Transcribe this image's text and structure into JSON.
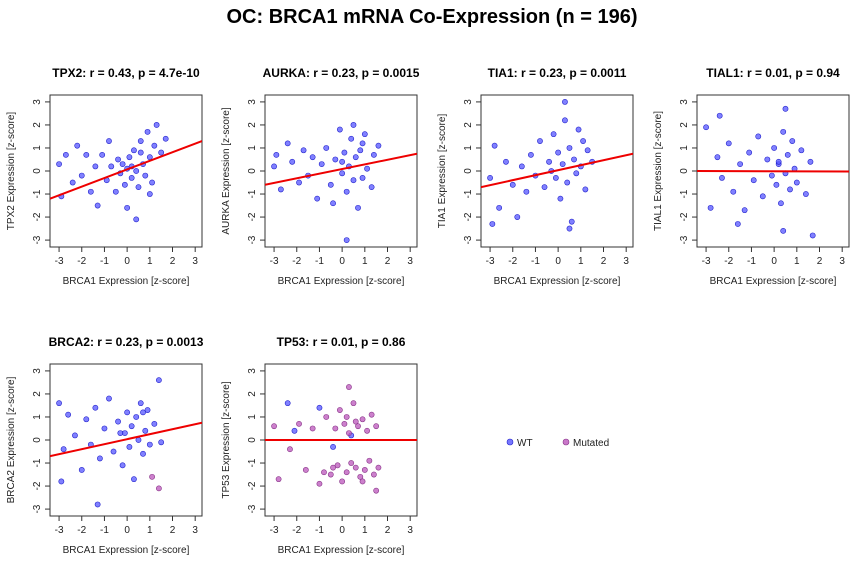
{
  "title": "OC: BRCA1 mRNA Co-Expression (n = 196)",
  "colors": {
    "wt": "#5555ff",
    "wt_stroke": "#2222cc",
    "mutated": "#bb55bb",
    "mutated_stroke": "#883388",
    "regression": "#ee0000"
  },
  "legend": {
    "items": [
      {
        "label": "WT",
        "color": "#5555ff"
      },
      {
        "label": "Mutated",
        "color": "#bb55bb"
      }
    ]
  },
  "chart_data": [
    {
      "type": "scatter",
      "title": "TPX2: r = 0.43, p = 4.7e-10",
      "xlabel": "BRCA1 Expression [z-score]",
      "ylabel": "TPX2 Expression [z-score]",
      "xlim": [
        -3.4,
        3.3
      ],
      "ylim": [
        -3.3,
        3.3
      ],
      "xticks": [
        -3,
        -2,
        -1,
        0,
        1,
        2,
        3
      ],
      "yticks": [
        -3,
        -2,
        -1,
        0,
        1,
        2,
        3
      ],
      "regression": {
        "x": [
          -3.4,
          3.3
        ],
        "y": [
          -1.2,
          1.3
        ]
      },
      "series": [
        {
          "name": "WT",
          "points": [
            [
              -3.0,
              0.3
            ],
            [
              -2.7,
              0.7
            ],
            [
              -2.4,
              -0.5
            ],
            [
              -2.2,
              1.1
            ],
            [
              -2.0,
              -0.2
            ],
            [
              -1.8,
              0.7
            ],
            [
              -1.6,
              -0.9
            ],
            [
              -1.4,
              0.2
            ],
            [
              -1.3,
              -1.5
            ],
            [
              -1.1,
              0.7
            ],
            [
              -0.9,
              -0.4
            ],
            [
              -0.7,
              0.2
            ],
            [
              -0.5,
              -0.9
            ],
            [
              -0.4,
              0.5
            ],
            [
              -0.3,
              -0.1
            ],
            [
              -0.2,
              0.3
            ],
            [
              -0.1,
              -0.6
            ],
            [
              0.0,
              0.1
            ],
            [
              0.1,
              0.6
            ],
            [
              0.2,
              -0.3
            ],
            [
              0.3,
              0.9
            ],
            [
              0.4,
              0.0
            ],
            [
              0.5,
              -0.7
            ],
            [
              0.6,
              1.3
            ],
            [
              0.7,
              0.3
            ],
            [
              0.8,
              -0.2
            ],
            [
              0.9,
              1.7
            ],
            [
              1.0,
              0.6
            ],
            [
              1.1,
              -0.5
            ],
            [
              1.2,
              1.1
            ],
            [
              1.3,
              2.0
            ],
            [
              1.5,
              0.8
            ],
            [
              1.7,
              1.4
            ],
            [
              -0.8,
              1.3
            ],
            [
              0.0,
              -1.6
            ],
            [
              0.4,
              -2.1
            ],
            [
              1.0,
              -1.0
            ],
            [
              -2.9,
              -1.1
            ],
            [
              0.6,
              0.8
            ],
            [
              0.2,
              0.2
            ]
          ]
        },
        {
          "name": "Mutated",
          "points": []
        }
      ]
    },
    {
      "type": "scatter",
      "title": "AURKA: r = 0.23, p = 0.0015",
      "xlabel": "BRCA1 Expression [z-score]",
      "ylabel": "AURKA Expression [z-score]",
      "xlim": [
        -3.4,
        3.3
      ],
      "ylim": [
        -3.3,
        3.3
      ],
      "xticks": [
        -3,
        -2,
        -1,
        0,
        1,
        2,
        3
      ],
      "yticks": [
        -3,
        -2,
        -1,
        0,
        1,
        2,
        3
      ],
      "regression": {
        "x": [
          -3.4,
          3.3
        ],
        "y": [
          -0.6,
          0.75
        ]
      },
      "series": [
        {
          "name": "WT",
          "points": [
            [
              -3.0,
              0.2
            ],
            [
              -2.7,
              -0.8
            ],
            [
              -2.4,
              1.2
            ],
            [
              -2.2,
              0.4
            ],
            [
              -1.9,
              -0.5
            ],
            [
              -1.7,
              0.9
            ],
            [
              -1.5,
              -0.2
            ],
            [
              -1.3,
              0.6
            ],
            [
              -1.1,
              -1.2
            ],
            [
              -0.9,
              0.3
            ],
            [
              -0.7,
              1.0
            ],
            [
              -0.5,
              -0.6
            ],
            [
              -0.3,
              0.5
            ],
            [
              -0.1,
              1.8
            ],
            [
              0.0,
              -0.1
            ],
            [
              0.1,
              0.8
            ],
            [
              0.2,
              -0.9
            ],
            [
              0.3,
              0.2
            ],
            [
              0.4,
              1.4
            ],
            [
              0.5,
              -0.4
            ],
            [
              0.6,
              0.6
            ],
            [
              0.7,
              -1.6
            ],
            [
              0.8,
              0.9
            ],
            [
              0.9,
              -0.3
            ],
            [
              1.0,
              1.6
            ],
            [
              1.1,
              0.1
            ],
            [
              1.3,
              -0.7
            ],
            [
              1.4,
              0.7
            ],
            [
              1.6,
              1.1
            ],
            [
              0.2,
              -3.0
            ],
            [
              -0.4,
              -1.4
            ],
            [
              0.5,
              2.0
            ],
            [
              -2.9,
              0.7
            ],
            [
              0.9,
              1.2
            ],
            [
              0.0,
              0.4
            ]
          ]
        },
        {
          "name": "Mutated",
          "points": []
        }
      ]
    },
    {
      "type": "scatter",
      "title": "TIA1: r = 0.23, p = 0.0011",
      "xlabel": "BRCA1 Expression [z-score]",
      "ylabel": "TIA1 Expression [z-score]",
      "xlim": [
        -3.4,
        3.3
      ],
      "ylim": [
        -3.3,
        3.3
      ],
      "xticks": [
        -3,
        -2,
        -1,
        0,
        1,
        2,
        3
      ],
      "yticks": [
        -3,
        -2,
        -1,
        0,
        1,
        2,
        3
      ],
      "regression": {
        "x": [
          -3.4,
          3.3
        ],
        "y": [
          -0.7,
          0.75
        ]
      },
      "series": [
        {
          "name": "WT",
          "points": [
            [
              -3.0,
              -0.3
            ],
            [
              -2.8,
              1.1
            ],
            [
              -2.6,
              -1.6
            ],
            [
              -2.3,
              0.4
            ],
            [
              -2.0,
              -0.6
            ],
            [
              -1.8,
              -2.0
            ],
            [
              -1.6,
              0.2
            ],
            [
              -1.4,
              -0.9
            ],
            [
              -1.2,
              0.7
            ],
            [
              -1.0,
              -0.2
            ],
            [
              -0.8,
              1.3
            ],
            [
              -0.6,
              -0.7
            ],
            [
              -0.4,
              0.4
            ],
            [
              -0.2,
              1.6
            ],
            [
              -0.1,
              -0.3
            ],
            [
              0.0,
              0.8
            ],
            [
              0.1,
              -1.2
            ],
            [
              0.2,
              0.3
            ],
            [
              0.3,
              2.2
            ],
            [
              0.4,
              -0.5
            ],
            [
              0.5,
              1.0
            ],
            [
              0.6,
              -2.2
            ],
            [
              0.7,
              0.5
            ],
            [
              0.8,
              -0.1
            ],
            [
              0.9,
              1.8
            ],
            [
              1.0,
              0.2
            ],
            [
              1.2,
              -0.8
            ],
            [
              1.3,
              0.9
            ],
            [
              1.5,
              0.4
            ],
            [
              0.3,
              3.0
            ],
            [
              -2.9,
              -2.3
            ],
            [
              0.5,
              -2.5
            ],
            [
              1.1,
              1.3
            ],
            [
              -0.3,
              0.0
            ]
          ]
        },
        {
          "name": "Mutated",
          "points": []
        }
      ]
    },
    {
      "type": "scatter",
      "title": "TIAL1: r = 0.01, p = 0.94",
      "xlabel": "BRCA1 Expression [z-score]",
      "ylabel": "TIAL1 Expression [z-score]",
      "xlim": [
        -3.4,
        3.3
      ],
      "ylim": [
        -3.3,
        3.3
      ],
      "xticks": [
        -3,
        -2,
        -1,
        0,
        1,
        2,
        3
      ],
      "yticks": [
        -3,
        -2,
        -1,
        0,
        1,
        2,
        3
      ],
      "regression": {
        "x": [
          -3.4,
          3.3
        ],
        "y": [
          0.0,
          -0.02
        ]
      },
      "series": [
        {
          "name": "WT",
          "points": [
            [
              -3.0,
              1.9
            ],
            [
              -2.8,
              -1.6
            ],
            [
              -2.5,
              0.6
            ],
            [
              -2.3,
              -0.3
            ],
            [
              -2.0,
              1.2
            ],
            [
              -1.8,
              -0.9
            ],
            [
              -1.5,
              0.3
            ],
            [
              -1.3,
              -1.7
            ],
            [
              -1.1,
              0.8
            ],
            [
              -0.9,
              -0.4
            ],
            [
              -0.7,
              1.5
            ],
            [
              -0.5,
              -1.1
            ],
            [
              -0.3,
              0.5
            ],
            [
              -0.1,
              -0.2
            ],
            [
              0.0,
              1.0
            ],
            [
              0.1,
              -0.6
            ],
            [
              0.2,
              0.3
            ],
            [
              0.3,
              -1.4
            ],
            [
              0.4,
              1.7
            ],
            [
              0.5,
              -0.1
            ],
            [
              0.6,
              0.7
            ],
            [
              0.7,
              -0.8
            ],
            [
              0.8,
              1.3
            ],
            [
              0.9,
              0.1
            ],
            [
              1.0,
              -0.5
            ],
            [
              1.2,
              0.9
            ],
            [
              1.4,
              -1.0
            ],
            [
              1.6,
              0.4
            ],
            [
              0.5,
              2.7
            ],
            [
              -2.4,
              2.4
            ],
            [
              0.4,
              -2.6
            ],
            [
              1.7,
              -2.8
            ],
            [
              -1.6,
              -2.3
            ],
            [
              0.2,
              0.4
            ]
          ]
        },
        {
          "name": "Mutated",
          "points": []
        }
      ]
    },
    {
      "type": "scatter",
      "title": "BRCA2: r = 0.23, p = 0.0013",
      "xlabel": "BRCA1 Expression [z-score]",
      "ylabel": "BRCA2 Expression [z-score]",
      "xlim": [
        -3.4,
        3.3
      ],
      "ylim": [
        -3.3,
        3.3
      ],
      "xticks": [
        -3,
        -2,
        -1,
        0,
        1,
        2,
        3
      ],
      "yticks": [
        -3,
        -2,
        -1,
        0,
        1,
        2,
        3
      ],
      "regression": {
        "x": [
          -3.4,
          3.3
        ],
        "y": [
          -0.7,
          0.75
        ]
      },
      "series": [
        {
          "name": "WT",
          "points": [
            [
              -3.0,
              1.6
            ],
            [
              -2.8,
              -0.4
            ],
            [
              -2.6,
              1.1
            ],
            [
              -2.3,
              0.2
            ],
            [
              -2.0,
              -1.3
            ],
            [
              -1.8,
              0.9
            ],
            [
              -1.6,
              -0.2
            ],
            [
              -1.4,
              1.4
            ],
            [
              -1.2,
              -0.8
            ],
            [
              -1.0,
              0.5
            ],
            [
              -0.8,
              1.8
            ],
            [
              -0.6,
              -0.5
            ],
            [
              -0.4,
              0.8
            ],
            [
              -0.2,
              -1.1
            ],
            [
              -0.1,
              0.3
            ],
            [
              0.0,
              1.2
            ],
            [
              0.1,
              -0.3
            ],
            [
              0.2,
              0.6
            ],
            [
              0.3,
              -1.7
            ],
            [
              0.4,
              1.0
            ],
            [
              0.5,
              0.0
            ],
            [
              0.6,
              1.6
            ],
            [
              0.7,
              -0.6
            ],
            [
              0.8,
              0.4
            ],
            [
              0.9,
              1.3
            ],
            [
              1.0,
              -0.2
            ],
            [
              1.2,
              0.7
            ],
            [
              1.4,
              2.6
            ],
            [
              1.5,
              -0.1
            ],
            [
              -1.3,
              -2.8
            ],
            [
              -2.9,
              -1.8
            ],
            [
              0.7,
              1.2
            ],
            [
              -0.3,
              0.3
            ]
          ]
        },
        {
          "name": "Mutated",
          "points": [
            [
              1.1,
              -1.6
            ],
            [
              1.4,
              -2.1
            ]
          ]
        }
      ]
    },
    {
      "type": "scatter",
      "title": "TP53: r = 0.01, p = 0.86",
      "xlabel": "BRCA1 Expression [z-score]",
      "ylabel": "TP53 Expression [z-score]",
      "xlim": [
        -3.4,
        3.3
      ],
      "ylim": [
        -3.3,
        3.3
      ],
      "xticks": [
        -3,
        -2,
        -1,
        0,
        1,
        2,
        3
      ],
      "yticks": [
        -3,
        -2,
        -1,
        0,
        1,
        2,
        3
      ],
      "regression": {
        "x": [
          -3.4,
          3.3
        ],
        "y": [
          0.0,
          0.0
        ]
      },
      "series": [
        {
          "name": "WT",
          "points": [
            [
              -2.4,
              1.6
            ],
            [
              -2.1,
              0.4
            ],
            [
              -1.0,
              1.4
            ],
            [
              -0.4,
              -0.3
            ],
            [
              0.4,
              0.2
            ]
          ]
        },
        {
          "name": "Mutated",
          "points": [
            [
              -3.0,
              0.6
            ],
            [
              -2.8,
              -1.7
            ],
            [
              -2.3,
              -0.4
            ],
            [
              -1.9,
              0.7
            ],
            [
              -1.6,
              -1.3
            ],
            [
              -1.3,
              0.5
            ],
            [
              -1.0,
              -1.9
            ],
            [
              -0.7,
              1.0
            ],
            [
              -0.5,
              -1.5
            ],
            [
              -0.3,
              0.5
            ],
            [
              -0.2,
              -1.1
            ],
            [
              -0.1,
              1.3
            ],
            [
              0.0,
              -1.8
            ],
            [
              0.1,
              0.7
            ],
            [
              0.2,
              -1.4
            ],
            [
              0.3,
              0.3
            ],
            [
              0.4,
              -1.0
            ],
            [
              0.5,
              1.6
            ],
            [
              0.6,
              -1.2
            ],
            [
              0.7,
              0.6
            ],
            [
              0.8,
              -1.6
            ],
            [
              0.9,
              0.9
            ],
            [
              1.0,
              -1.3
            ],
            [
              1.1,
              0.4
            ],
            [
              1.2,
              -0.9
            ],
            [
              1.3,
              1.1
            ],
            [
              1.4,
              -1.5
            ],
            [
              1.5,
              0.6
            ],
            [
              1.6,
              -1.2
            ],
            [
              0.3,
              2.3
            ],
            [
              1.5,
              -2.2
            ],
            [
              -0.8,
              -1.4
            ],
            [
              0.9,
              -1.8
            ],
            [
              0.6,
              0.8
            ],
            [
              -0.4,
              -1.2
            ],
            [
              0.2,
              1.0
            ]
          ]
        }
      ]
    }
  ]
}
